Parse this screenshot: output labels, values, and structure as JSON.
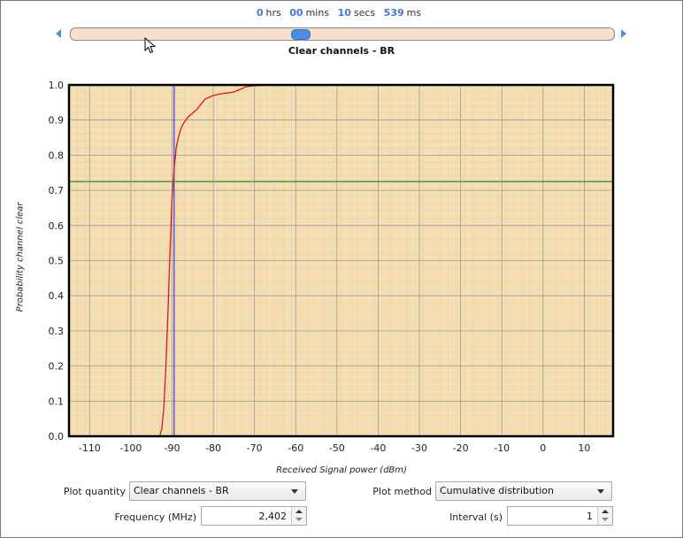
{
  "timer": {
    "hrs": "0",
    "hrs_unit": "hrs",
    "mins": "00",
    "mins_unit": "mins",
    "secs": "10",
    "secs_unit": "secs",
    "ms": "539",
    "ms_unit": "ms"
  },
  "playback_position": 0.42,
  "colors": {
    "accent": "#4a8de6",
    "plot_background": "#f5deb3",
    "curve": "#e0151b",
    "marker_vertical": "#3b3bd6",
    "marker_horizontal": "#2e9a2e"
  },
  "icons": {
    "left": "arrow-left-icon",
    "right": "arrow-right-icon",
    "cursor": "mouse-pointer-icon",
    "dropdown": "chevron-down-icon",
    "spin_up": "spin-up-icon",
    "spin_down": "spin-down-icon"
  },
  "chart_data": {
    "type": "line",
    "title": "Clear channels - BR",
    "xlabel": "Received Signal power (dBm)",
    "ylabel": "Probability channel clear",
    "xlim": [
      -115,
      17
    ],
    "ylim": [
      0,
      1
    ],
    "x_ticks": [
      "-110",
      "-100",
      "-90",
      "-80",
      "-70",
      "-60",
      "-50",
      "-40",
      "-30",
      "-20",
      "-10",
      "0",
      "10"
    ],
    "y_ticks": [
      "0.0",
      "0.1",
      "0.2",
      "0.3",
      "0.4",
      "0.5",
      "0.6",
      "0.7",
      "0.8",
      "0.9",
      "1.0"
    ],
    "grid": true,
    "series": [
      {
        "x": [
          -93,
          -92.5,
          -92,
          -91.5,
          -91,
          -90.5,
          -90,
          -89.5,
          -89,
          -88.5,
          -88,
          -87.5,
          -87,
          -86,
          -85,
          -84,
          -83,
          -82,
          -81,
          -80,
          -78,
          -76,
          -75,
          -74,
          -73,
          -72,
          -70,
          -67,
          -60
        ],
        "y": [
          0.0,
          0.02,
          0.08,
          0.2,
          0.35,
          0.52,
          0.68,
          0.76,
          0.82,
          0.85,
          0.87,
          0.885,
          0.895,
          0.91,
          0.92,
          0.93,
          0.945,
          0.96,
          0.965,
          0.97,
          0.975,
          0.978,
          0.98,
          0.985,
          0.99,
          0.995,
          0.998,
          1.0,
          1.0
        ]
      }
    ],
    "marker_x": -89.5,
    "marker_y": 0.725
  },
  "controls": {
    "plot_quantity_label": "Plot quantity",
    "plot_quantity_value": "Clear channels - BR",
    "plot_method_label": "Plot method",
    "plot_method_value": "Cumulative distribution",
    "frequency_label": "Frequency (MHz)",
    "frequency_value": "2,402",
    "interval_label": "Interval (s)",
    "interval_value": "1"
  }
}
